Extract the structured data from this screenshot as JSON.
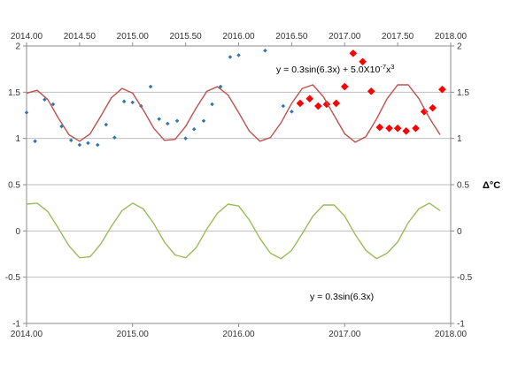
{
  "chart_data": {
    "type": "scatter",
    "title": "",
    "xlabel": "",
    "ylabel_right": "Δ°C",
    "xlim": [
      2014,
      2018
    ],
    "ylim": [
      -1,
      2
    ],
    "grid": "horizontal",
    "x_ticks_bottom": [
      "2014.00",
      "2015.00",
      "2016.00",
      "2017.00",
      "2018.00"
    ],
    "x_ticks_top": [
      "2014.00",
      "2014.50",
      "2015.00",
      "2015.50",
      "2016.00",
      "2016.50",
      "2017.00",
      "2017.50",
      "2018.00"
    ],
    "y_ticks_left": [
      "-1",
      "-0.5",
      "0",
      "0.5",
      "1",
      "1.5",
      "2"
    ],
    "y_ticks_right": [
      "-1",
      "-0.5",
      "0",
      "0.5",
      "1",
      "1.5",
      "2"
    ],
    "annotations": [
      {
        "text": "y = 0.3sin(6.3x) + 5.0X10",
        "sup": "-7",
        "after": "x",
        "sup2": "3"
      },
      {
        "text": "y = 0.3sin(6.3x)"
      }
    ],
    "series": [
      {
        "marker": "dot",
        "color": "#2E75B6",
        "x": [
          2014.0,
          2014.08,
          2014.17,
          2014.25,
          2014.33,
          2014.42,
          2014.5,
          2014.58,
          2014.67,
          2014.75,
          2014.83,
          2014.92,
          2015.0,
          2015.08,
          2015.17,
          2015.25,
          2015.33,
          2015.42,
          2015.5,
          2015.58,
          2015.67,
          2015.75,
          2015.83,
          2015.92,
          2016.0,
          2016.25,
          2016.42,
          2016.5
        ],
        "y": [
          1.28,
          0.97,
          1.42,
          1.37,
          1.13,
          0.98,
          0.93,
          0.95,
          0.93,
          1.15,
          1.01,
          1.4,
          1.39,
          1.35,
          1.56,
          1.21,
          1.16,
          1.19,
          1.0,
          1.1,
          1.19,
          1.37,
          1.56,
          1.88,
          1.9,
          1.95,
          1.35,
          1.29
        ]
      },
      {
        "marker": "diamond",
        "color": "#FF0000",
        "x": [
          2016.58,
          2016.67,
          2016.75,
          2016.83,
          2016.92,
          2017.0,
          2017.08,
          2017.17,
          2017.25,
          2017.33,
          2017.42,
          2017.5,
          2017.58,
          2017.67,
          2017.75,
          2017.83,
          2017.92
        ],
        "y": [
          1.38,
          1.43,
          1.35,
          1.37,
          1.38,
          1.56,
          1.92,
          1.83,
          1.51,
          1.12,
          1.11,
          1.11,
          1.08,
          1.11,
          1.29,
          1.33,
          1.53
        ]
      },
      {
        "type": "line",
        "color": "#C0504D",
        "formula": "0.3sin(6.3x) + 5.0x10^-7 x^3",
        "x": [
          2014.0,
          2014.1,
          2014.2,
          2014.3,
          2014.4,
          2014.5,
          2014.6,
          2014.7,
          2014.8,
          2014.9,
          2015.0,
          2015.1,
          2015.2,
          2015.3,
          2015.4,
          2015.5,
          2015.6,
          2015.7,
          2015.8,
          2015.9,
          2016.0,
          2016.1,
          2016.2,
          2016.3,
          2016.4,
          2016.5,
          2016.6,
          2016.7,
          2016.8,
          2016.9,
          2017.0,
          2017.1,
          2017.2,
          2017.3,
          2017.4,
          2017.5,
          2017.6,
          2017.7,
          2017.8,
          2017.9
        ],
        "y": [
          1.49,
          1.52,
          1.42,
          1.22,
          1.04,
          0.97,
          1.05,
          1.24,
          1.44,
          1.54,
          1.49,
          1.31,
          1.11,
          0.98,
          0.99,
          1.13,
          1.33,
          1.51,
          1.56,
          1.47,
          1.28,
          1.08,
          0.97,
          1.01,
          1.17,
          1.38,
          1.54,
          1.58,
          1.45,
          1.25,
          1.05,
          0.96,
          1.02,
          1.21,
          1.43,
          1.58,
          1.58,
          1.43,
          1.22,
          1.04
        ]
      },
      {
        "type": "line",
        "color": "#9BBB59",
        "formula": "0.3sin(6.3x)",
        "x": [
          2014.0,
          2014.1,
          2014.2,
          2014.3,
          2014.4,
          2014.5,
          2014.6,
          2014.7,
          2014.8,
          2014.9,
          2015.0,
          2015.1,
          2015.2,
          2015.3,
          2015.4,
          2015.5,
          2015.6,
          2015.7,
          2015.8,
          2015.9,
          2016.0,
          2016.1,
          2016.2,
          2016.3,
          2016.4,
          2016.5,
          2016.6,
          2016.7,
          2016.8,
          2016.9,
          2017.0,
          2017.1,
          2017.2,
          2017.3,
          2017.4,
          2017.5,
          2017.6,
          2017.7,
          2017.8,
          2017.9
        ],
        "y": [
          0.29,
          0.3,
          0.21,
          0.03,
          -0.16,
          -0.29,
          -0.28,
          -0.14,
          0.05,
          0.22,
          0.3,
          0.24,
          0.08,
          -0.12,
          -0.26,
          -0.29,
          -0.18,
          0.02,
          0.19,
          0.29,
          0.27,
          0.12,
          -0.08,
          -0.24,
          -0.3,
          -0.21,
          -0.03,
          0.16,
          0.28,
          0.28,
          0.16,
          -0.04,
          -0.21,
          -0.3,
          -0.24,
          -0.12,
          0.09,
          0.24,
          0.3,
          0.22
        ]
      }
    ]
  }
}
